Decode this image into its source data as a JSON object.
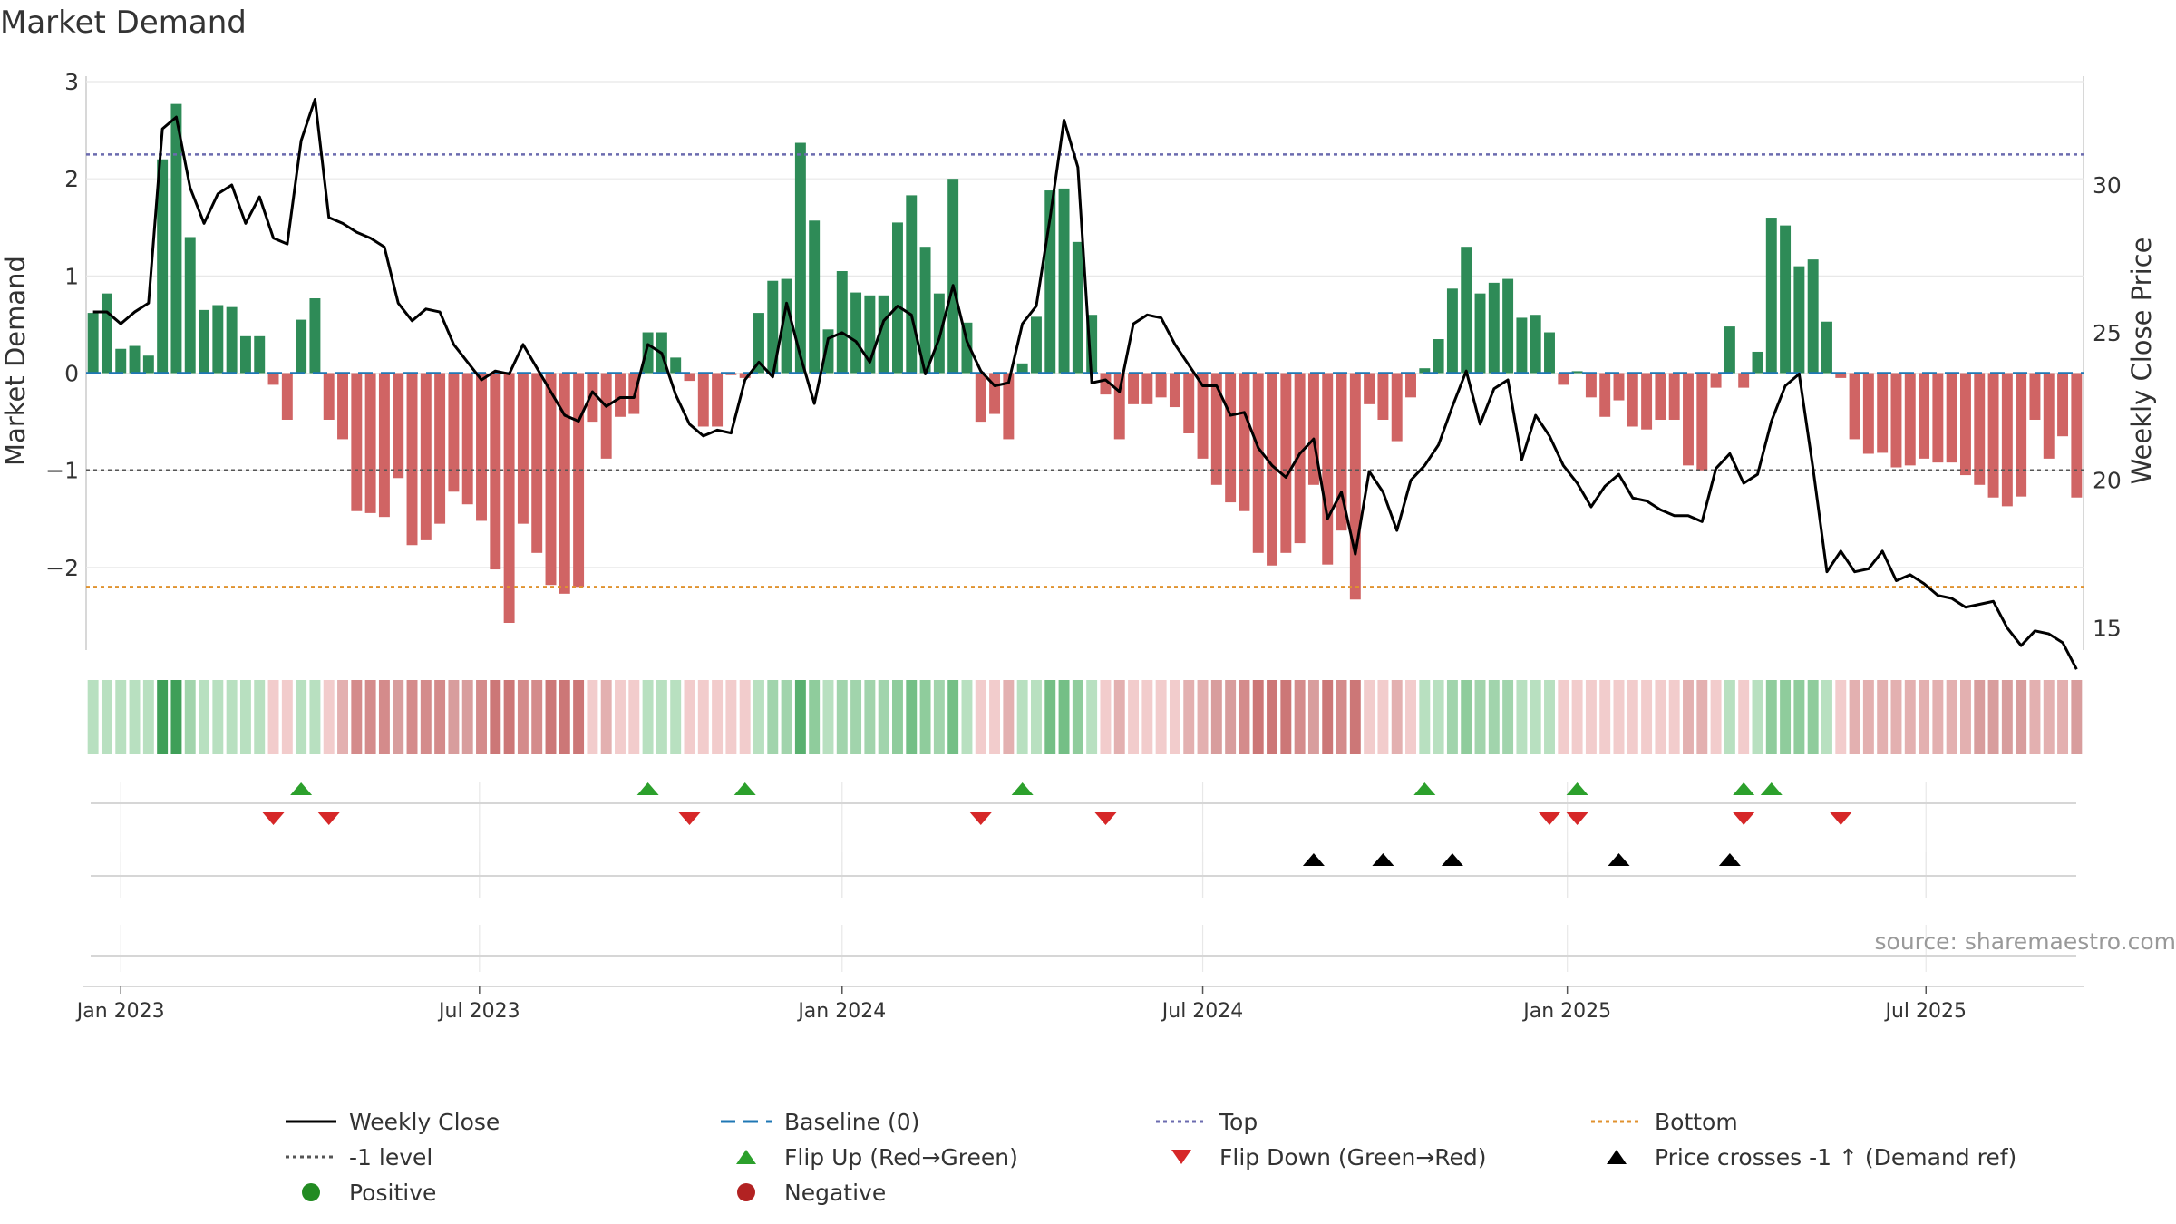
{
  "chart_data": {
    "type": "bar",
    "title": "Market Demand",
    "ylabel": "Market Demand",
    "y2label": "Weekly Close Price",
    "ylim": [
      -2.85,
      3.0
    ],
    "y2lim": [
      14.25,
      33.5
    ],
    "yticks": [
      3,
      2,
      1,
      0,
      -1,
      -2
    ],
    "yticklabels": [
      "3",
      "2",
      "1",
      "0",
      "−1",
      "−2"
    ],
    "y2ticks": [
      30,
      25,
      20,
      15
    ],
    "y2ticklabels": [
      "30",
      "25",
      "20",
      "15"
    ],
    "x_start": "2022-12-19",
    "x_step_days": 7,
    "xlim_days": [
      -1,
      144.5
    ],
    "xticks": [
      {
        "day": 14,
        "label": "Jan 2023"
      },
      {
        "day": 195,
        "label": "Jul 2023"
      },
      {
        "day": 378,
        "label": "Jan 2024"
      },
      {
        "day": 560,
        "label": "Jul 2024"
      },
      {
        "day": 744,
        "label": "Jan 2025"
      },
      {
        "day": 925,
        "label": "Jul 2025"
      }
    ],
    "reference_lines": {
      "top": 2.25,
      "bottom": -2.2,
      "minus_one": -1,
      "baseline": 0
    },
    "demand": [
      0.62,
      0.82,
      0.25,
      0.28,
      0.18,
      2.2,
      2.77,
      1.4,
      0.65,
      0.7,
      0.68,
      0.38,
      0.38,
      -0.12,
      -0.48,
      0.55,
      0.77,
      -0.48,
      -0.68,
      -1.42,
      -1.44,
      -1.48,
      -1.08,
      -1.77,
      -1.72,
      -1.55,
      -1.22,
      -1.35,
      -1.52,
      -2.02,
      -2.57,
      -1.55,
      -1.85,
      -2.18,
      -2.27,
      -2.2,
      -0.5,
      -0.88,
      -0.45,
      -0.42,
      0.42,
      0.42,
      0.16,
      -0.08,
      -0.55,
      -0.55,
      -0.02,
      -0.05,
      0.62,
      0.95,
      0.97,
      2.37,
      1.57,
      0.45,
      1.05,
      0.83,
      0.8,
      0.8,
      1.55,
      1.83,
      1.3,
      0.82,
      2.0,
      0.52,
      -0.5,
      -0.42,
      -0.68,
      0.1,
      0.58,
      1.88,
      1.9,
      1.35,
      0.6,
      -0.22,
      -0.68,
      -0.32,
      -0.32,
      -0.25,
      -0.35,
      -0.62,
      -0.88,
      -1.15,
      -1.33,
      -1.42,
      -1.85,
      -1.98,
      -1.85,
      -1.75,
      -1.15,
      -1.97,
      -1.62,
      -2.33,
      -0.32,
      -0.48,
      -0.7,
      -0.25,
      0.05,
      0.35,
      0.87,
      1.3,
      0.82,
      0.93,
      0.97,
      0.57,
      0.6,
      0.42,
      -0.12,
      0.02,
      -0.25,
      -0.45,
      -0.28,
      -0.55,
      -0.58,
      -0.48,
      -0.48,
      -0.95,
      -1.0,
      -0.15,
      0.48,
      -0.15,
      0.22,
      1.6,
      1.52,
      1.1,
      1.17,
      0.53,
      -0.05,
      -0.68,
      -0.83,
      -0.82,
      -0.97,
      -0.95,
      -0.88,
      -0.92,
      -0.92,
      -1.05,
      -1.15,
      -1.28,
      -1.37,
      -1.27,
      -0.48,
      -0.88,
      -0.65,
      -1.28
    ],
    "close": [
      25.7,
      25.7,
      25.3,
      25.7,
      26.0,
      31.9,
      32.3,
      29.9,
      28.7,
      29.7,
      30.0,
      28.7,
      29.6,
      28.2,
      28.0,
      31.5,
      32.9,
      28.9,
      28.7,
      28.4,
      28.2,
      27.9,
      26.0,
      25.4,
      25.8,
      25.7,
      24.6,
      24.0,
      23.4,
      23.7,
      23.6,
      24.6,
      23.8,
      23.0,
      22.2,
      22.0,
      23.0,
      22.5,
      22.8,
      22.8,
      24.6,
      24.3,
      22.9,
      21.9,
      21.5,
      21.7,
      21.6,
      23.4,
      24.0,
      23.5,
      26.0,
      24.2,
      22.6,
      24.8,
      25.0,
      24.7,
      24.0,
      25.4,
      25.9,
      25.6,
      23.6,
      24.8,
      26.6,
      24.7,
      23.7,
      23.2,
      23.3,
      25.3,
      25.9,
      28.9,
      32.2,
      30.6,
      23.3,
      23.4,
      23.0,
      25.3,
      25.6,
      25.5,
      24.6,
      23.9,
      23.2,
      23.2,
      22.2,
      22.3,
      21.1,
      20.5,
      20.1,
      20.9,
      21.4,
      18.7,
      19.6,
      17.5,
      20.3,
      19.6,
      18.3,
      20.0,
      20.5,
      21.2,
      22.5,
      23.7,
      21.9,
      23.1,
      23.4,
      20.7,
      22.2,
      21.5,
      20.5,
      19.9,
      19.1,
      19.8,
      20.2,
      19.4,
      19.3,
      19.0,
      18.8,
      18.8,
      18.6,
      20.4,
      20.9,
      19.9,
      20.2,
      22.0,
      23.2,
      23.6,
      20.4,
      16.9,
      17.6,
      16.9,
      17.0,
      17.6,
      16.6,
      16.8,
      16.5,
      16.1,
      16.0,
      15.7,
      15.8,
      15.9,
      15.0,
      14.4,
      14.9,
      14.8,
      14.5,
      13.6
    ],
    "heatmap_colors": [
      "#b8e0c0",
      "#b8e0c0",
      "#b8e0c0",
      "#b8e0c0",
      "#b8e0c0",
      "#3f9f58",
      "#3f9f58",
      "#a1d4ac",
      "#b8e0c0",
      "#b8e0c0",
      "#b8e0c0",
      "#b8e0c0",
      "#b8e0c0",
      "#f2cccc",
      "#f2cccc",
      "#b8e0c0",
      "#b8e0c0",
      "#f2cccc",
      "#e3b0b0",
      "#d48b8b",
      "#d48b8b",
      "#d48b8b",
      "#d89d9d",
      "#d48b8b",
      "#d48b8b",
      "#d48b8b",
      "#d89d9d",
      "#d89d9d",
      "#d48b8b",
      "#cc7777",
      "#cc7777",
      "#d48b8b",
      "#d48b8b",
      "#cc7777",
      "#cc7777",
      "#cc7777",
      "#f2cccc",
      "#e3b0b0",
      "#f2cccc",
      "#f2cccc",
      "#b8e0c0",
      "#b8e0c0",
      "#b8e0c0",
      "#f2cccc",
      "#f2cccc",
      "#f2cccc",
      "#f2cccc",
      "#f2cccc",
      "#b8e0c0",
      "#a1d4ac",
      "#a1d4ac",
      "#59b06f",
      "#8fcc9c",
      "#b8e0c0",
      "#a1d4ac",
      "#a1d4ac",
      "#a1d4ac",
      "#a1d4ac",
      "#8fcc9c",
      "#74bf86",
      "#8fcc9c",
      "#a1d4ac",
      "#74bf86",
      "#b8e0c0",
      "#f2cccc",
      "#f2cccc",
      "#e3b0b0",
      "#b8e0c0",
      "#b8e0c0",
      "#74bf86",
      "#74bf86",
      "#8fcc9c",
      "#b8e0c0",
      "#f2cccc",
      "#e3b0b0",
      "#f2cccc",
      "#f2cccc",
      "#f2cccc",
      "#f2cccc",
      "#e3b0b0",
      "#e3b0b0",
      "#d89d9d",
      "#d89d9d",
      "#d48b8b",
      "#cc7777",
      "#cc7777",
      "#cc7777",
      "#d48b8b",
      "#d89d9d",
      "#cc7777",
      "#d48b8b",
      "#cc7777",
      "#f2cccc",
      "#f2cccc",
      "#e3b0b0",
      "#f2cccc",
      "#b8e0c0",
      "#b8e0c0",
      "#a1d4ac",
      "#8fcc9c",
      "#a1d4ac",
      "#a1d4ac",
      "#a1d4ac",
      "#b8e0c0",
      "#b8e0c0",
      "#b8e0c0",
      "#f2cccc",
      "#f2cccc",
      "#f2cccc",
      "#f2cccc",
      "#f2cccc",
      "#f2cccc",
      "#f2cccc",
      "#f2cccc",
      "#f2cccc",
      "#e3b0b0",
      "#e3b0b0",
      "#f2cccc",
      "#b8e0c0",
      "#f2cccc",
      "#b8e0c0",
      "#8fcc9c",
      "#8fcc9c",
      "#8fcc9c",
      "#8fcc9c",
      "#b8e0c0",
      "#f2cccc",
      "#e3b0b0",
      "#e3b0b0",
      "#e3b0b0",
      "#e3b0b0",
      "#e3b0b0",
      "#e3b0b0",
      "#e3b0b0",
      "#e3b0b0",
      "#e3b0b0",
      "#d89d9d",
      "#d89d9d",
      "#d89d9d",
      "#d89d9d",
      "#e3b0b0",
      "#e3b0b0",
      "#e3b0b0",
      "#d89d9d"
    ],
    "flip_up_weeks": [
      15,
      40,
      47,
      67,
      96,
      107,
      119,
      121
    ],
    "flip_down_weeks": [
      13,
      17,
      43,
      64,
      73,
      105,
      107,
      119,
      126
    ],
    "cross_weeks": [
      88,
      93,
      98,
      110,
      118
    ],
    "colors": {
      "positive": "#2e8b57",
      "negative": "#cd5c5c",
      "close": "#000000",
      "baseline": "#1f77b4",
      "top": "#6b6baf",
      "bottom": "#e0922f",
      "minus_one": "#555555",
      "flip_up": "#2ca02c",
      "flip_down": "#d62728",
      "cross": "#000000",
      "positive_dot": "#228b22",
      "negative_dot": "#b22222",
      "grid": "#e8e8e8",
      "text": "#333333"
    },
    "legend": [
      {
        "key": "weekly_close",
        "label": "Weekly Close"
      },
      {
        "key": "baseline",
        "label": "Baseline (0)"
      },
      {
        "key": "top",
        "label": "Top"
      },
      {
        "key": "bottom",
        "label": "Bottom"
      },
      {
        "key": "minus_one",
        "label": "-1 level"
      },
      {
        "key": "flip_up",
        "label": "Flip Up (Red→Green)"
      },
      {
        "key": "flip_down",
        "label": "Flip Down (Green→Red)"
      },
      {
        "key": "cross",
        "label": "Price crosses -1 ↑ (Demand ref)"
      },
      {
        "key": "positive",
        "label": "Positive"
      },
      {
        "key": "negative",
        "label": "Negative"
      }
    ],
    "source": "source: sharemaestro.com"
  }
}
